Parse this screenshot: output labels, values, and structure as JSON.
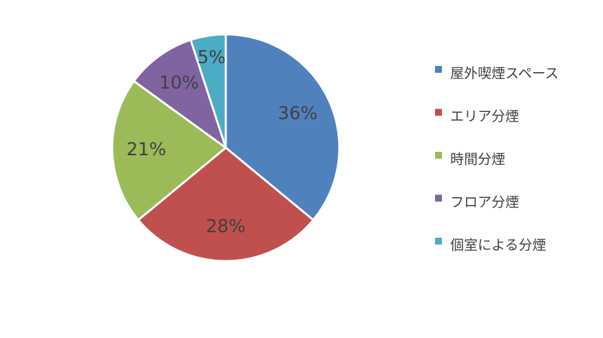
{
  "chart_data": {
    "type": "pie",
    "categories": [
      "屋外喫煙スペース",
      "エリア分煙",
      "時間分煙",
      "フロア分煙",
      "個室による分煙"
    ],
    "values": [
      36,
      28,
      21,
      10,
      5
    ],
    "value_labels": [
      "36%",
      "28%",
      "21%",
      "10%",
      "5%"
    ],
    "colors": [
      "#4f81bd",
      "#c0504d",
      "#9bbb59",
      "#8064a2",
      "#4bacc6"
    ],
    "legend": "right"
  }
}
